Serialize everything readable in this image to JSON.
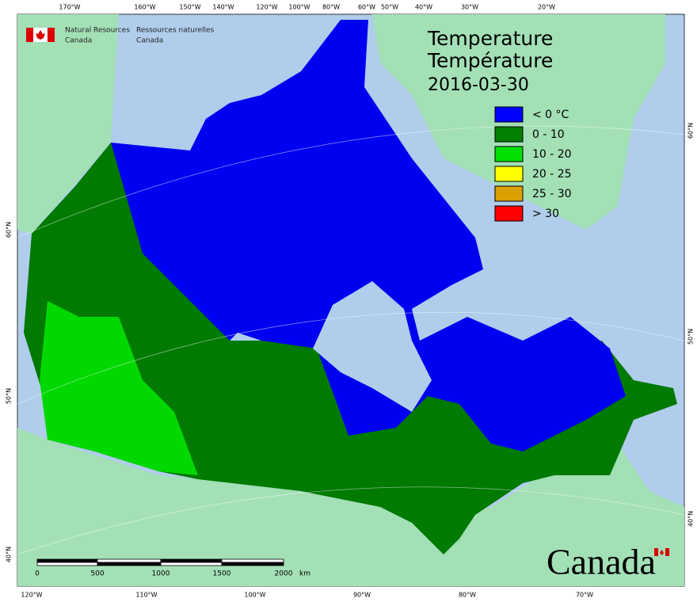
{
  "header": {
    "agency_en": [
      "Natural Resources",
      "Canada"
    ],
    "agency_fr": [
      "Ressources naturelles",
      "Canada"
    ]
  },
  "title": [
    "Temperature",
    "Température"
  ],
  "date": "2016-03-30",
  "legend": [
    {
      "label": "< 0 °C",
      "color": "#0000ff"
    },
    {
      "label": "0 - 10",
      "color": "#008000"
    },
    {
      "label": "10 - 20",
      "color": "#00e000"
    },
    {
      "label": "20 - 25",
      "color": "#ffff00"
    },
    {
      "label": "25 - 30",
      "color": "#daa000"
    },
    {
      "label": "> 30",
      "color": "#ff0000"
    }
  ],
  "top_labels": [
    "170°W",
    "160°W",
    "150°W",
    "140°W",
    "120°W",
    "100°W",
    "80°W",
    "60°W",
    "50°W",
    "40°W",
    "30°W",
    "20°W"
  ],
  "bottom_labels": [
    "120°W",
    "110°W",
    "100°W",
    "90°W",
    "80°W",
    "70°W"
  ],
  "left_labels": [
    "60°N",
    "50°N",
    "40°N"
  ],
  "right_labels": [
    "60°N",
    "50°N",
    "40°N"
  ],
  "scale": {
    "ticks": [
      "0",
      "500",
      "1000",
      "1500",
      "2000"
    ],
    "unit": "km"
  },
  "wordmark": "Canada"
}
